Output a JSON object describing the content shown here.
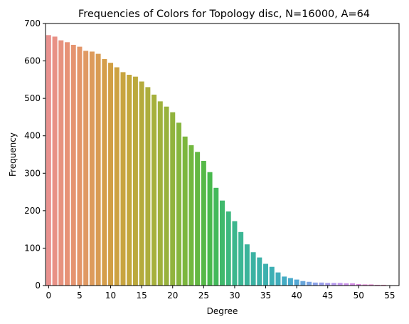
{
  "chart_data": {
    "type": "bar",
    "title": "Frequencies of Colors for Topology disc, N=16000, A=64",
    "xlabel": "Degree",
    "ylabel": "Frequency",
    "categories": [
      0,
      1,
      2,
      3,
      4,
      5,
      6,
      7,
      8,
      9,
      10,
      11,
      12,
      13,
      14,
      15,
      16,
      17,
      18,
      19,
      20,
      21,
      22,
      23,
      24,
      25,
      26,
      27,
      28,
      29,
      30,
      31,
      32,
      33,
      34,
      35,
      36,
      37,
      38,
      39,
      40,
      41,
      42,
      43,
      44,
      45,
      46,
      47,
      48,
      49,
      50,
      51,
      52,
      53,
      54,
      55,
      56
    ],
    "values": [
      669,
      665,
      655,
      650,
      643,
      638,
      627,
      625,
      619,
      605,
      595,
      583,
      570,
      563,
      558,
      545,
      530,
      510,
      492,
      478,
      463,
      435,
      398,
      375,
      357,
      333,
      303,
      261,
      227,
      198,
      172,
      143,
      110,
      89,
      75,
      58,
      50,
      35,
      24,
      20,
      16,
      12,
      10,
      8,
      8,
      7,
      7,
      7,
      6,
      6,
      4,
      3,
      3,
      2,
      2,
      1,
      1
    ],
    "xticks": [
      0,
      5,
      10,
      15,
      20,
      25,
      30,
      35,
      40,
      45,
      50,
      55
    ],
    "yticks": [
      0,
      100,
      200,
      300,
      400,
      500,
      600,
      700
    ],
    "ylim": [
      0,
      700
    ],
    "grid": false,
    "colors": [
      "#e8918e",
      "#e79274",
      "#df9a5f",
      "#d29f44",
      "#c2a73d",
      "#aaaf3c",
      "#93b33d",
      "#71b83f",
      "#43b94e",
      "#3cb88a",
      "#3bb2a2",
      "#3dafb5",
      "#4aa8cf",
      "#8aa2e8",
      "#b899ef",
      "#d889e3",
      "#ea84c9",
      "#ef8aa9"
    ]
  }
}
